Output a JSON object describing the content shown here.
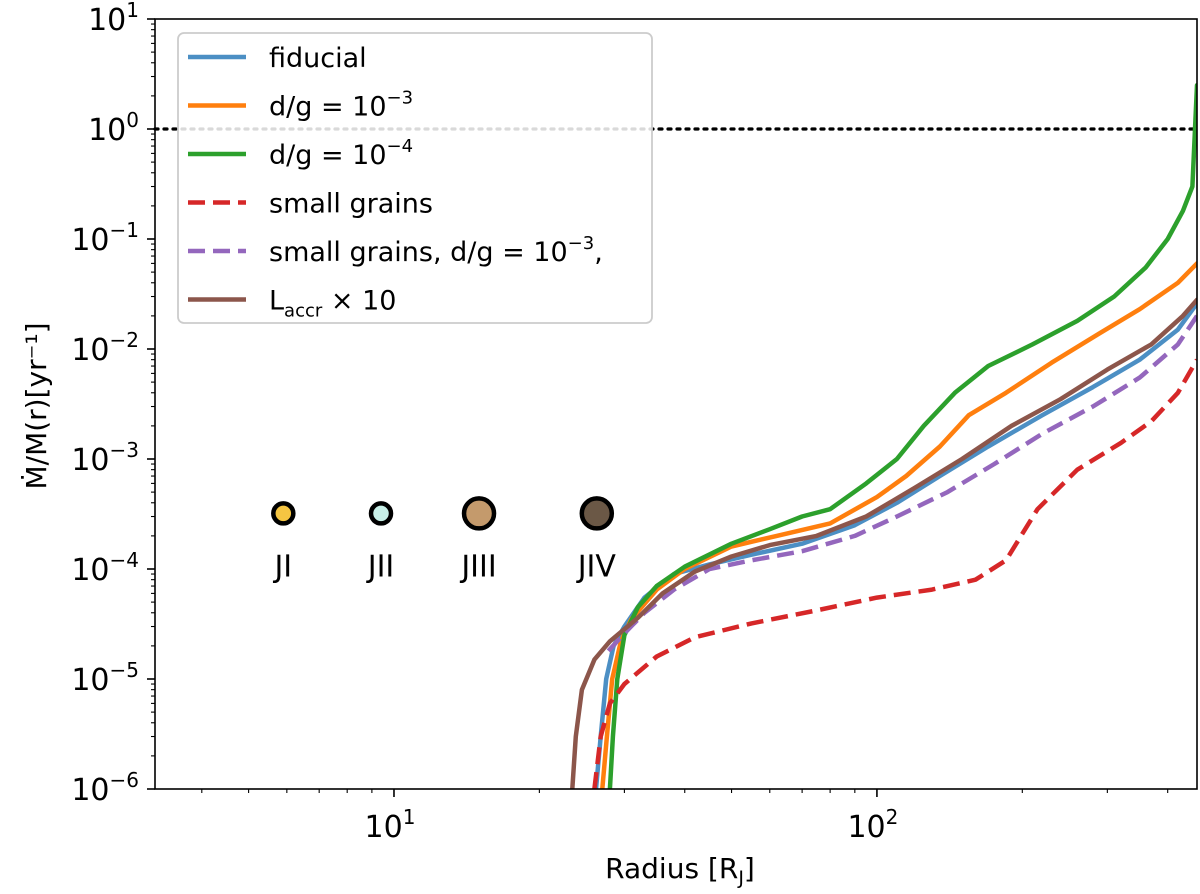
{
  "chart_data": {
    "type": "line",
    "xlabel": "Radius [R",
    "xlabel_sub": "J",
    "xlabel_close": "]",
    "ylabel": "Ṁ/M(r)[yr⁻¹]",
    "xscale": "log",
    "yscale": "log",
    "xlim": [
      3.2,
      460
    ],
    "ylim": [
      1e-06,
      10
    ],
    "x_ticks": [
      {
        "base": "10",
        "exp": "1",
        "value": 10
      },
      {
        "base": "10",
        "exp": "2",
        "value": 100
      }
    ],
    "y_ticks": [
      {
        "base": "10",
        "exp": "1",
        "value": 10
      },
      {
        "base": "10",
        "exp": "0",
        "value": 1
      },
      {
        "base": "10",
        "exp": "−1",
        "value": 0.1
      },
      {
        "base": "10",
        "exp": "−2",
        "value": 0.01
      },
      {
        "base": "10",
        "exp": "−3",
        "value": 0.001
      },
      {
        "base": "10",
        "exp": "−4",
        "value": 0.0001
      },
      {
        "base": "10",
        "exp": "−5",
        "value": 1e-05
      },
      {
        "base": "10",
        "exp": "−6",
        "value": 1e-06
      }
    ],
    "grid": false,
    "reference_line": {
      "y": 1,
      "style": "dotted",
      "color": "#000000"
    },
    "legend_position": "top-left",
    "series": [
      {
        "name": "fiducial",
        "color": "#4c8fc4",
        "dash": "solid",
        "points": [
          [
            26.2,
            1e-06
          ],
          [
            26.8,
            3e-06
          ],
          [
            27.5,
            1e-05
          ],
          [
            28.5,
            2e-05
          ],
          [
            30,
            3e-05
          ],
          [
            33,
            5.5e-05
          ],
          [
            38,
            9e-05
          ],
          [
            45,
            0.00011
          ],
          [
            55,
            0.000135
          ],
          [
            70,
            0.00017
          ],
          [
            90,
            0.00025
          ],
          [
            110,
            0.0004
          ],
          [
            135,
            0.0007
          ],
          [
            170,
            0.0013
          ],
          [
            220,
            0.0025
          ],
          [
            280,
            0.0045
          ],
          [
            350,
            0.008
          ],
          [
            420,
            0.015
          ],
          [
            460,
            0.026
          ]
        ]
      },
      {
        "name": "d/g = 10⁻³",
        "color": "#ff7f0e",
        "dash": "solid",
        "points": [
          [
            27,
            1e-06
          ],
          [
            27.6,
            3e-06
          ],
          [
            28.3,
            1e-05
          ],
          [
            29.5,
            2.2e-05
          ],
          [
            31,
            3.5e-05
          ],
          [
            35,
            6.5e-05
          ],
          [
            40,
            0.0001
          ],
          [
            50,
            0.00016
          ],
          [
            62,
            0.0002
          ],
          [
            80,
            0.00026
          ],
          [
            100,
            0.00045
          ],
          [
            115,
            0.0007
          ],
          [
            135,
            0.0013
          ],
          [
            155,
            0.0025
          ],
          [
            185,
            0.004
          ],
          [
            230,
            0.0075
          ],
          [
            290,
            0.014
          ],
          [
            350,
            0.023
          ],
          [
            420,
            0.04
          ],
          [
            460,
            0.06
          ]
        ]
      },
      {
        "name": "d/g = 10⁻⁴",
        "color": "#2ca02c",
        "dash": "solid",
        "points": [
          [
            28,
            1e-06
          ],
          [
            28.4,
            3e-06
          ],
          [
            29,
            1e-05
          ],
          [
            30,
            2.5e-05
          ],
          [
            32,
            4.5e-05
          ],
          [
            35,
            7e-05
          ],
          [
            40,
            0.000105
          ],
          [
            50,
            0.00017
          ],
          [
            60,
            0.00023
          ],
          [
            70,
            0.0003
          ],
          [
            80,
            0.00035
          ],
          [
            95,
            0.0006
          ],
          [
            110,
            0.001
          ],
          [
            125,
            0.002
          ],
          [
            145,
            0.004
          ],
          [
            170,
            0.007
          ],
          [
            210,
            0.011
          ],
          [
            260,
            0.018
          ],
          [
            310,
            0.03
          ],
          [
            360,
            0.055
          ],
          [
            400,
            0.1
          ],
          [
            430,
            0.18
          ],
          [
            450,
            0.3
          ],
          [
            460,
            2.5
          ]
        ]
      },
      {
        "name": "small grains",
        "color": "#d62728",
        "dash": "dashed",
        "points": [
          [
            26,
            1e-06
          ],
          [
            26.8,
            3e-06
          ],
          [
            28,
            6e-06
          ],
          [
            30,
            9e-06
          ],
          [
            35,
            1.6e-05
          ],
          [
            42,
            2.4e-05
          ],
          [
            55,
            3.2e-05
          ],
          [
            75,
            4.2e-05
          ],
          [
            100,
            5.5e-05
          ],
          [
            130,
            6.5e-05
          ],
          [
            160,
            8e-05
          ],
          [
            185,
            0.00012
          ],
          [
            215,
            0.00035
          ],
          [
            260,
            0.0008
          ],
          [
            320,
            0.0014
          ],
          [
            370,
            0.0022
          ],
          [
            420,
            0.004
          ],
          [
            460,
            0.008
          ]
        ]
      },
      {
        "name": "small grains, d/g = 10⁻³,",
        "color": "#9467bd",
        "dash": "dashed",
        "points": [
          [
            27.8,
            1.8e-05
          ],
          [
            30,
            2.6e-05
          ],
          [
            33,
            4e-05
          ],
          [
            38,
            6.5e-05
          ],
          [
            45,
            0.0001
          ],
          [
            55,
            0.00012
          ],
          [
            70,
            0.000145
          ],
          [
            90,
            0.0002
          ],
          [
            110,
            0.0003
          ],
          [
            140,
            0.0005
          ],
          [
            175,
            0.0009
          ],
          [
            220,
            0.0017
          ],
          [
            280,
            0.003
          ],
          [
            350,
            0.0055
          ],
          [
            420,
            0.011
          ],
          [
            460,
            0.02
          ]
        ]
      },
      {
        "name": "L_accr × 10",
        "color": "#8c564b",
        "dash": "solid",
        "points": [
          [
            23.4,
            1e-06
          ],
          [
            23.8,
            3e-06
          ],
          [
            24.5,
            8e-06
          ],
          [
            26,
            1.5e-05
          ],
          [
            28,
            2.2e-05
          ],
          [
            32,
            3.6e-05
          ],
          [
            36,
            6e-05
          ],
          [
            42,
            9.5e-05
          ],
          [
            50,
            0.00013
          ],
          [
            60,
            0.000165
          ],
          [
            75,
            0.0002
          ],
          [
            95,
            0.0003
          ],
          [
            120,
            0.00055
          ],
          [
            150,
            0.001
          ],
          [
            190,
            0.002
          ],
          [
            240,
            0.0035
          ],
          [
            300,
            0.0065
          ],
          [
            370,
            0.011
          ],
          [
            430,
            0.02
          ],
          [
            460,
            0.028
          ]
        ]
      }
    ],
    "legend": [
      {
        "label": "fiducial",
        "sup": "",
        "sub": ""
      },
      {
        "label": "d/g = 10",
        "sup": "−3",
        "sub": ""
      },
      {
        "label": "d/g = 10",
        "sup": "−4",
        "sub": ""
      },
      {
        "label": "small grains",
        "sup": "",
        "sub": ""
      },
      {
        "label": "small grains, d/g = 10",
        "sup": "−3",
        "tail": ",",
        "sub": ""
      },
      {
        "label": "L",
        "sup": "",
        "sub": "accr",
        "tail": " × 10"
      }
    ],
    "annotations": [
      {
        "text": "JI",
        "x": 5.9,
        "y": 0.00032,
        "fill": "#f5c542",
        "size": "small"
      },
      {
        "text": "JII",
        "x": 9.4,
        "y": 0.00032,
        "fill": "#c8f0e8",
        "size": "small"
      },
      {
        "text": "JIII",
        "x": 15.0,
        "y": 0.00032,
        "fill": "#c49a6c",
        "size": "large"
      },
      {
        "text": "JIV",
        "x": 26.3,
        "y": 0.00032,
        "fill": "#6b5846",
        "size": "large"
      }
    ]
  }
}
